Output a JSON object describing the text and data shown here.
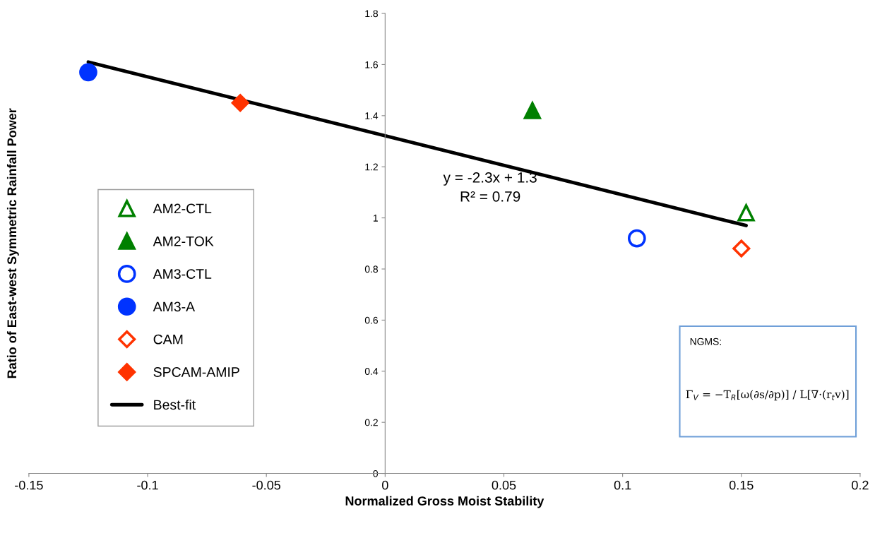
{
  "chart_data": {
    "type": "scatter",
    "xlabel": "Normalized Gross Moist Stability",
    "ylabel": "Ratio of East-west Symmetric Rainfall Power",
    "xlim": [
      -0.15,
      0.2
    ],
    "xticks": [
      -0.15,
      -0.1,
      -0.05,
      0,
      0.05,
      0.1,
      0.15,
      0.2
    ],
    "ylim": [
      0,
      1.8
    ],
    "yticks": [
      0,
      0.2,
      0.4,
      0.6,
      0.8,
      1,
      1.2,
      1.4,
      1.6,
      1.8
    ],
    "grid": false,
    "legend": "left",
    "series": [
      {
        "name": "AM2-CTL",
        "color": "#008000",
        "marker": "triangle",
        "x": [
          0.152
        ],
        "values": [
          1.02
        ]
      },
      {
        "name": "AM2-TOK",
        "color": "#008000",
        "marker": "triangle",
        "x": [
          0.062
        ],
        "values": [
          1.42
        ]
      },
      {
        "name": "AM3-CTL",
        "color": "#0033ff",
        "marker": "circle",
        "x": [
          0.106
        ],
        "values": [
          0.92
        ]
      },
      {
        "name": "AM3-A",
        "color": "#0033ff",
        "marker": "circle",
        "x": [
          -0.125
        ],
        "values": [
          1.57
        ]
      },
      {
        "name": "CAM",
        "color": "#ff3300",
        "marker": "diamond",
        "x": [
          0.15
        ],
        "values": [
          0.88
        ]
      },
      {
        "name": "SPCAM-AMIP",
        "color": "#ff3300",
        "marker": "diamond",
        "x": [
          -0.061
        ],
        "values": [
          1.45
        ]
      },
      {
        "name": "Best-fit",
        "type": "line",
        "color": "#000000",
        "marker": "none",
        "x": [
          -0.125,
          0.152
        ],
        "values": [
          1.61,
          0.97
        ]
      }
    ],
    "annotations": [
      "y = -2.3x + 1.3\nR² = 0.79",
      "NGMS:",
      "Γ$_{V}$ = −T$_{R}$[ω(∂s/∂p)] / L[∇·(r$_{t}$v)]"
    ]
  }
}
